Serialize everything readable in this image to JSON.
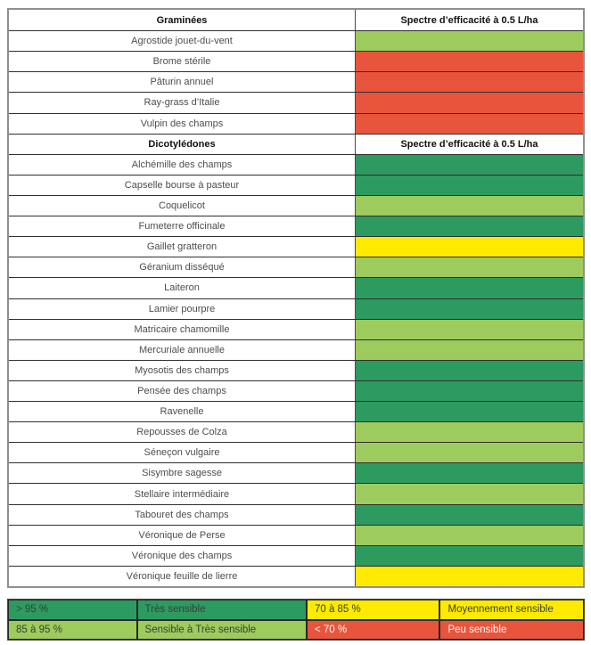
{
  "colors": {
    "rating_colors": {
      "tres_sensible": "#2d9a60",
      "sensible_a_tres_sensible": "#9ecb5d",
      "moyennement_sensible": "#fdea00",
      "peu_sensible": "#e8553c"
    },
    "legend_dark_text": "#33423a",
    "legend_white_text": "#ffffff",
    "row_text": "#4d4d4d",
    "header_text": "#111111"
  },
  "table": {
    "sections": [
      {
        "group_label": "Graminées",
        "spectrum_label": "Spectre d’efficacité à 0.5 L/ha",
        "rows": [
          {
            "name": "Agrostide jouet-du-vent",
            "rating": "sensible_a_tres_sensible"
          },
          {
            "name": "Brome stérile",
            "rating": "peu_sensible"
          },
          {
            "name": "Pâturin annuel",
            "rating": "peu_sensible"
          },
          {
            "name": "Ray-grass d’Italie",
            "rating": "peu_sensible"
          },
          {
            "name": "Vulpin des champs",
            "rating": "peu_sensible"
          }
        ]
      },
      {
        "group_label": "Dicotylédones",
        "spectrum_label": "Spectre d’efficacité à 0.5 L/ha",
        "rows": [
          {
            "name": "Alchémille des champs",
            "rating": "tres_sensible"
          },
          {
            "name": "Capselle bourse à pasteur",
            "rating": "tres_sensible"
          },
          {
            "name": "Coquelicot",
            "rating": "sensible_a_tres_sensible"
          },
          {
            "name": "Fumeterre officinale",
            "rating": "tres_sensible"
          },
          {
            "name": "Gaillet gratteron",
            "rating": "moyennement_sensible"
          },
          {
            "name": "Géranium disséqué",
            "rating": "sensible_a_tres_sensible"
          },
          {
            "name": "Laiteron",
            "rating": "tres_sensible"
          },
          {
            "name": "Lamier pourpre",
            "rating": "tres_sensible"
          },
          {
            "name": "Matricaire chamomille",
            "rating": "sensible_a_tres_sensible"
          },
          {
            "name": "Mercuriale annuelle",
            "rating": "sensible_a_tres_sensible"
          },
          {
            "name": "Myosotis des champs",
            "rating": "tres_sensible"
          },
          {
            "name": "Pensée des champs",
            "rating": "tres_sensible"
          },
          {
            "name": "Ravenelle",
            "rating": "tres_sensible"
          },
          {
            "name": "Repousses de Colza",
            "rating": "sensible_a_tres_sensible"
          },
          {
            "name": "Séneçon vulgaire",
            "rating": "sensible_a_tres_sensible"
          },
          {
            "name": "Sisymbre sagesse",
            "rating": "tres_sensible"
          },
          {
            "name": "Stellaire intermédiaire",
            "rating": "sensible_a_tres_sensible"
          },
          {
            "name": "Tabouret des champs",
            "rating": "tres_sensible"
          },
          {
            "name": "Véronique de Perse",
            "rating": "sensible_a_tres_sensible"
          },
          {
            "name": "Véronique des champs",
            "rating": "tres_sensible"
          },
          {
            "name": "Véronique feuille de lierre",
            "rating": "moyennement_sensible"
          }
        ]
      }
    ]
  },
  "legend": {
    "rows": [
      [
        {
          "label": "> 95 %",
          "rating": "tres_sensible",
          "text": "dark"
        },
        {
          "label": "Très sensible",
          "rating": "tres_sensible",
          "text": "dark"
        },
        {
          "label": "70 à 85 %",
          "rating": "moyennement_sensible",
          "text": "dark"
        },
        {
          "label": "Moyennement sensible",
          "rating": "moyennement_sensible",
          "text": "dark"
        }
      ],
      [
        {
          "label": "85 à 95 %",
          "rating": "sensible_a_tres_sensible",
          "text": "dark"
        },
        {
          "label": "Sensible à Très sensible",
          "rating": "sensible_a_tres_sensible",
          "text": "dark"
        },
        {
          "label": "< 70 %",
          "rating": "peu_sensible",
          "text": "white"
        },
        {
          "label": "Peu sensible",
          "rating": "peu_sensible",
          "text": "white"
        }
      ]
    ]
  }
}
